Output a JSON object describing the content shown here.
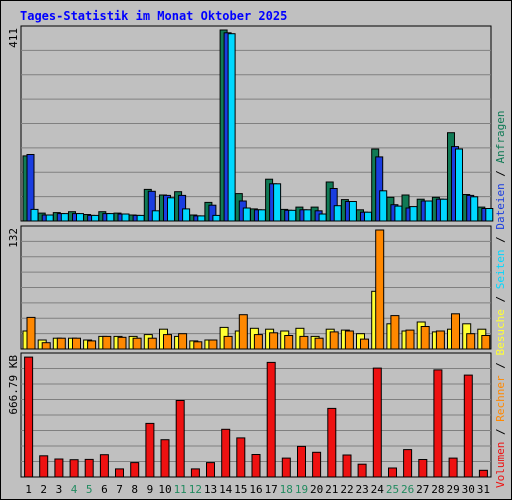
{
  "chart_data": {
    "type": "bar",
    "title": "Tages-Statistik im Monat Oktober 2025",
    "categories": [
      "1",
      "2",
      "3",
      "4",
      "5",
      "6",
      "7",
      "8",
      "9",
      "10",
      "11",
      "12",
      "13",
      "14",
      "15",
      "16",
      "17",
      "18",
      "19",
      "20",
      "21",
      "22",
      "23",
      "24",
      "25",
      "26",
      "27",
      "28",
      "29",
      "30",
      "31"
    ],
    "weekend_days": [
      4,
      5,
      11,
      12,
      18,
      19,
      25,
      26
    ],
    "colors": {
      "background": "#c0c0c0",
      "title": "#0000ff",
      "weekday_label": "#000000",
      "weekend_label": "#228b60",
      "Anfragen": "#107a55",
      "Dateien": "#1a3de0",
      "Seiten": "#00d8ff",
      "Besuche": "#ffff33",
      "Rechner": "#ff8800",
      "Volumen": "#ee1111"
    },
    "panels": [
      {
        "ymax_label": "411",
        "ymax": 411,
        "series": [
          {
            "name": "Anfragen",
            "values": [
              140,
              17,
              18,
              20,
              14,
              20,
              17,
              13,
              68,
              56,
              63,
              13,
              40,
              411,
              59,
              26,
              90,
              25,
              30,
              30,
              84,
              46,
              24,
              155,
              51,
              56,
              47,
              51,
              190,
              57,
              30
            ]
          },
          {
            "name": "Dateien",
            "values": [
              143,
              13,
              16,
              16,
              12,
              16,
              15,
              12,
              64,
              55,
              55,
              11,
              34,
              405,
              43,
              24,
              80,
              23,
              24,
              22,
              70,
              42,
              19,
              138,
              35,
              28,
              43,
              47,
              160,
              55,
              27
            ]
          },
          {
            "name": "Seiten",
            "values": [
              25,
              13,
              16,
              16,
              12,
              16,
              15,
              12,
              22,
              50,
              26,
              11,
              12,
              403,
              28,
              24,
              80,
              23,
              24,
              15,
              33,
              42,
              19,
              65,
              32,
              31,
              43,
              47,
              155,
              52,
              27
            ]
          }
        ]
      },
      {
        "ymax_label": "132",
        "ymax": 132,
        "series": [
          {
            "name": "Besuche",
            "values": [
              20,
              10,
              12,
              12,
              10,
              14,
              14,
              14,
              16,
              22,
              14,
              9,
              10,
              24,
              20,
              23,
              22,
              20,
              23,
              14,
              22,
              21,
              17,
              64,
              28,
              20,
              30,
              19,
              22,
              28,
              22
            ]
          },
          {
            "name": "Rechner",
            "values": [
              35,
              7,
              12,
              12,
              9,
              14,
              13,
              12,
              12,
              16,
              17,
              8,
              10,
              14,
              38,
              16,
              18,
              15,
              14,
              12,
              19,
              20,
              11,
              132,
              37,
              21,
              25,
              20,
              39,
              17,
              15
            ]
          }
        ]
      },
      {
        "ymax_label": "666.79 KB",
        "ymax": 666.79,
        "series": [
          {
            "name": "Volumen",
            "values": [
              666,
              118,
              100,
              96,
              98,
              124,
              45,
              80,
              298,
              207,
              425,
              45,
              80,
              265,
              217,
              125,
              637,
              105,
              170,
              137,
              381,
              122,
              71,
              605,
              50,
              152,
              97,
              595,
              105,
              566,
              37
            ]
          }
        ]
      }
    ],
    "side_label": {
      "segments": [
        {
          "text": "Volumen",
          "color": "#ee1111"
        },
        {
          "text": " / ",
          "color": "#000000"
        },
        {
          "text": "Rechner",
          "color": "#ff8800"
        },
        {
          "text": " / ",
          "color": "#000000"
        },
        {
          "text": "Besuche",
          "color": "#ffff33"
        },
        {
          "text": " / ",
          "color": "#000000"
        },
        {
          "text": "Seiten",
          "color": "#00d8ff"
        },
        {
          "text": " / ",
          "color": "#000000"
        },
        {
          "text": "Dateien",
          "color": "#1a3de0"
        },
        {
          "text": " / ",
          "color": "#000000"
        },
        {
          "text": "Anfragen",
          "color": "#107a55"
        }
      ]
    }
  }
}
